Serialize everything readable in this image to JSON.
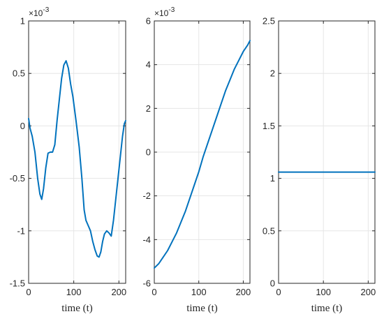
{
  "chart_data": [
    {
      "type": "line",
      "xlabel": "time (t)",
      "ylabel": "",
      "xlim": [
        0,
        215
      ],
      "ylim": [
        -0.0015,
        0.001
      ],
      "xticks": [
        0,
        100,
        200
      ],
      "xtick_labels": [
        "0",
        "100",
        "200"
      ],
      "yticks": [
        -1.5,
        -1,
        -0.5,
        0,
        0.5,
        1
      ],
      "ytick_labels": [
        "-1.5",
        "-1",
        "-0.5",
        "0",
        "0.5",
        "1"
      ],
      "y_scale_exponent": "-3",
      "y_scale_label": "×10",
      "grid": true,
      "line_color": "#0072BD",
      "series": [
        {
          "x": [
            0,
            3,
            8,
            14,
            20,
            25,
            29,
            33,
            38,
            43,
            48,
            53,
            58,
            63,
            68,
            73,
            78,
            83,
            88,
            93,
            98,
            105,
            112,
            118,
            123,
            127,
            132,
            137,
            142,
            147,
            152,
            156,
            160,
            164,
            168,
            173,
            178,
            183,
            188,
            193,
            198,
            203,
            208,
            212,
            215
          ],
          "y": [
            7e-05,
            -2e-05,
            -0.0001,
            -0.00025,
            -0.0005,
            -0.00065,
            -0.0007,
            -0.0006,
            -0.0004,
            -0.00026,
            -0.00025,
            -0.00025,
            -0.00018,
            5e-05,
            0.00025,
            0.00045,
            0.00058,
            0.00062,
            0.00055,
            0.0004,
            0.00028,
            5e-05,
            -0.0002,
            -0.0005,
            -0.0008,
            -0.0009,
            -0.00095,
            -0.001,
            -0.0011,
            -0.00118,
            -0.00124,
            -0.00125,
            -0.0012,
            -0.0011,
            -0.00103,
            -0.001,
            -0.00102,
            -0.00105,
            -0.0009,
            -0.0007,
            -0.0005,
            -0.0003,
            -0.0001,
            2e-05,
            5e-05
          ]
        }
      ]
    },
    {
      "type": "line",
      "xlabel": "time (t)",
      "ylabel": "",
      "xlim": [
        0,
        215
      ],
      "ylim": [
        -0.006,
        0.006
      ],
      "xticks": [
        0,
        100,
        200
      ],
      "xtick_labels": [
        "0",
        "100",
        "200"
      ],
      "yticks": [
        -6,
        -4,
        -2,
        0,
        2,
        4,
        6
      ],
      "ytick_labels": [
        "-6",
        "-4",
        "-2",
        "0",
        "2",
        "4",
        "6"
      ],
      "y_scale_exponent": "-3",
      "y_scale_label": "×10",
      "grid": true,
      "line_color": "#0072BD",
      "series": [
        {
          "x": [
            0,
            10,
            20,
            30,
            40,
            50,
            60,
            70,
            80,
            90,
            100,
            110,
            120,
            130,
            140,
            150,
            160,
            170,
            180,
            190,
            200,
            210,
            215
          ],
          "y": [
            -0.0053,
            -0.0051,
            -0.0048,
            -0.0045,
            -0.0041,
            -0.0037,
            -0.0032,
            -0.0027,
            -0.0021,
            -0.0015,
            -0.0009,
            -0.0002,
            0.0004,
            0.001,
            0.0016,
            0.0022,
            0.0028,
            0.0033,
            0.0038,
            0.0042,
            0.0046,
            0.0049,
            0.0051
          ]
        }
      ]
    },
    {
      "type": "line",
      "xlabel": "time (t)",
      "ylabel": "",
      "xlim": [
        0,
        215
      ],
      "ylim": [
        0,
        2.5
      ],
      "xticks": [
        0,
        100,
        200
      ],
      "xtick_labels": [
        "0",
        "100",
        "200"
      ],
      "yticks": [
        0,
        0.5,
        1,
        1.5,
        2,
        2.5
      ],
      "ytick_labels": [
        "0",
        "0.5",
        "1",
        "1.5",
        "2",
        "2.5"
      ],
      "grid": true,
      "line_color": "#0072BD",
      "series": [
        {
          "x": [
            0,
            215
          ],
          "y": [
            1.06,
            1.06
          ]
        }
      ]
    }
  ]
}
